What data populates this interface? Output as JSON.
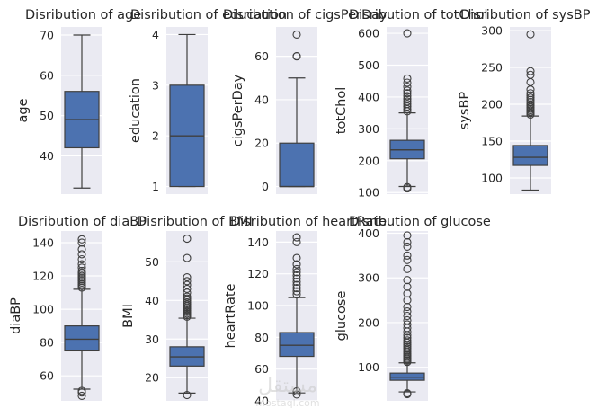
{
  "chart_data": [
    {
      "type": "box",
      "title": "Disribution of age",
      "ylabel": "age",
      "ylim": [
        30.5,
        72
      ],
      "yticks": [
        40,
        50,
        60,
        70
      ],
      "box": {
        "whisker_low": 32,
        "q1": 42,
        "median": 49,
        "q3": 56,
        "whisker_high": 70
      },
      "outliers": []
    },
    {
      "type": "box",
      "title": "Disribution of education",
      "ylabel": "education",
      "ylim": [
        0.85,
        4.15
      ],
      "yticks": [
        1,
        2,
        3,
        4
      ],
      "box": {
        "whisker_low": 1,
        "q1": 1,
        "median": 2,
        "q3": 3,
        "whisker_high": 4
      },
      "outliers": []
    },
    {
      "type": "box",
      "title": "Disribution of cigsPerDay",
      "ylabel": "cigsPerDay",
      "ylim": [
        -3.5,
        73.5
      ],
      "yticks": [
        0,
        20,
        40,
        60
      ],
      "box": {
        "whisker_low": 0,
        "q1": 0,
        "median": 0,
        "q3": 20,
        "whisker_high": 50
      },
      "outliers": [
        60,
        60,
        70
      ]
    },
    {
      "type": "box",
      "title": "Disribution of totChol",
      "ylabel": "totChol",
      "ylim": [
        95,
        620
      ],
      "yticks": [
        100,
        200,
        300,
        400,
        500,
        600
      ],
      "box": {
        "whisker_low": 119,
        "q1": 206,
        "median": 234,
        "q3": 264,
        "whisker_high": 350
      },
      "outliers": [
        113,
        117,
        355,
        362,
        370,
        378,
        386,
        394,
        403,
        412,
        420,
        432,
        445,
        458,
        600
      ]
    },
    {
      "type": "box",
      "title": "Disribution of sysBP",
      "ylabel": "sysBP",
      "ylim": [
        78,
        305
      ],
      "yticks": [
        100,
        150,
        200,
        250,
        300
      ],
      "box": {
        "whisker_low": 83.5,
        "q1": 117,
        "median": 128,
        "q3": 144,
        "whisker_high": 184
      },
      "outliers": [
        186,
        188,
        190,
        192,
        194,
        196,
        198,
        200,
        203,
        206,
        209,
        212,
        215,
        220,
        230,
        240,
        245,
        295
      ]
    },
    {
      "type": "box",
      "title": "Disribution of diaBP",
      "ylabel": "diaBP",
      "ylim": [
        45,
        147
      ],
      "yticks": [
        60,
        80,
        100,
        120,
        140
      ],
      "box": {
        "whisker_low": 52,
        "q1": 75,
        "median": 82,
        "q3": 90,
        "whisker_high": 112
      },
      "outliers": [
        48,
        50,
        51,
        113,
        114,
        115,
        116,
        117,
        118,
        119,
        120,
        121,
        122,
        123,
        125,
        127,
        130,
        133,
        136,
        140,
        142
      ]
    },
    {
      "type": "box",
      "title": "Disribution of BMI",
      "ylabel": "BMI",
      "ylim": [
        14,
        58
      ],
      "yticks": [
        20,
        30,
        40,
        50
      ],
      "box": {
        "whisker_low": 16,
        "q1": 23,
        "median": 25.4,
        "q3": 28,
        "whisker_high": 35.4
      },
      "outliers": [
        15.5,
        35.8,
        36.2,
        36.6,
        37,
        37.4,
        37.8,
        38.2,
        38.6,
        39,
        39.5,
        40,
        40.5,
        41,
        42,
        43,
        44,
        45,
        46,
        51,
        56
      ]
    },
    {
      "type": "box",
      "title": "Disribution of heartRate",
      "ylabel": "heartRate",
      "ylim": [
        40,
        147
      ],
      "yticks": [
        40,
        60,
        80,
        100,
        120,
        140
      ],
      "box": {
        "whisker_low": 45,
        "q1": 68,
        "median": 75,
        "q3": 83,
        "whisker_high": 105
      },
      "outliers": [
        44,
        46,
        107,
        109,
        111,
        113,
        115,
        117,
        119,
        121,
        123,
        126,
        130,
        140,
        143
      ]
    },
    {
      "type": "box",
      "title": "Disribution of glucose",
      "ylabel": "glucose",
      "ylim": [
        25,
        405
      ],
      "yticks": [
        100,
        200,
        300,
        400
      ],
      "box": {
        "whisker_low": 45,
        "q1": 71,
        "median": 78,
        "q3": 87,
        "whisker_high": 110
      },
      "outliers": [
        40,
        42,
        112,
        115,
        118,
        121,
        124,
        127,
        130,
        134,
        138,
        142,
        146,
        150,
        155,
        160,
        166,
        172,
        180,
        188,
        196,
        205,
        215,
        225,
        235,
        250,
        265,
        280,
        295,
        320,
        340,
        350,
        370,
        380,
        395
      ]
    }
  ],
  "colors": {
    "plot_bg": "#eaeaf2",
    "grid": "#ffffff",
    "box_fill": "#4c72b0",
    "line": "#3f3f3f",
    "text": "#262626"
  },
  "watermark": {
    "text": "مستقل",
    "sub": "mostaql.com"
  }
}
